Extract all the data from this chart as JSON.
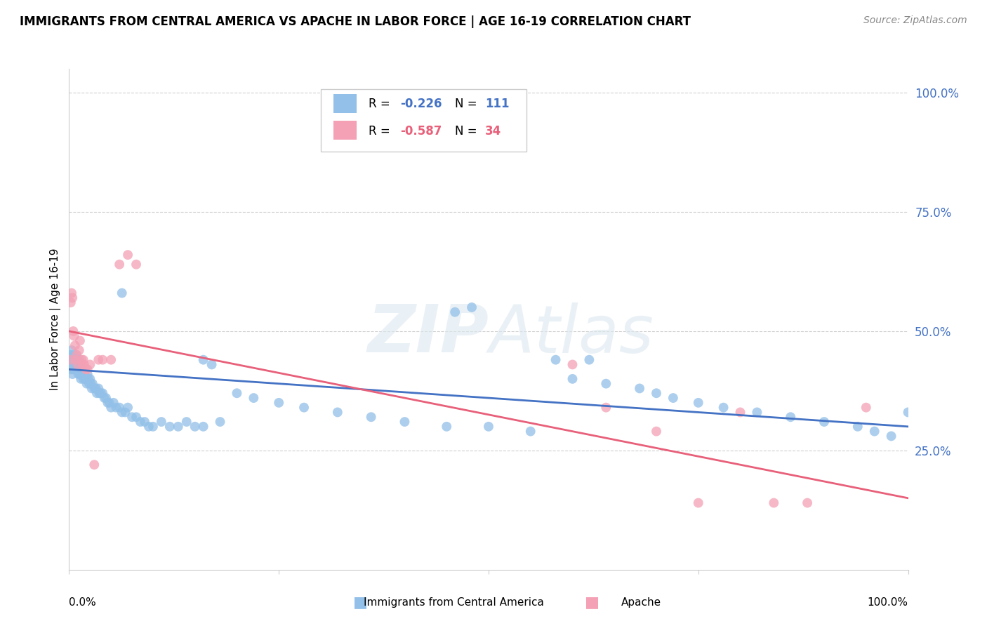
{
  "title": "IMMIGRANTS FROM CENTRAL AMERICA VS APACHE IN LABOR FORCE | AGE 16-19 CORRELATION CHART",
  "source": "Source: ZipAtlas.com",
  "ylabel": "In Labor Force | Age 16-19",
  "ytick_labels": [
    "100.0%",
    "75.0%",
    "50.0%",
    "25.0%"
  ],
  "ytick_positions": [
    1.0,
    0.75,
    0.5,
    0.25
  ],
  "legend_blue_R": "-0.226",
  "legend_blue_N": "111",
  "legend_pink_R": "-0.587",
  "legend_pink_N": "34",
  "legend_blue_label": "Immigrants from Central America",
  "legend_pink_label": "Apache",
  "blue_color": "#92C0E8",
  "pink_color": "#F4A0B5",
  "blue_line_color": "#4472C4",
  "pink_line_color": "#E8607A",
  "blue_trend_x": [
    0.0,
    1.0
  ],
  "blue_trend_y": [
    0.42,
    0.3
  ],
  "pink_trend_x": [
    0.0,
    1.0
  ],
  "pink_trend_y": [
    0.5,
    0.15
  ],
  "xlim": [
    0.0,
    1.0
  ],
  "ylim": [
    0.0,
    1.05
  ],
  "blue_scatter_x": [
    0.001,
    0.002,
    0.002,
    0.003,
    0.003,
    0.003,
    0.004,
    0.004,
    0.004,
    0.005,
    0.005,
    0.005,
    0.006,
    0.006,
    0.006,
    0.007,
    0.007,
    0.007,
    0.008,
    0.008,
    0.008,
    0.009,
    0.009,
    0.009,
    0.01,
    0.01,
    0.011,
    0.011,
    0.012,
    0.012,
    0.013,
    0.013,
    0.014,
    0.014,
    0.015,
    0.015,
    0.016,
    0.017,
    0.018,
    0.019,
    0.02,
    0.021,
    0.022,
    0.023,
    0.024,
    0.025,
    0.026,
    0.027,
    0.028,
    0.03,
    0.032,
    0.033,
    0.035,
    0.036,
    0.038,
    0.04,
    0.042,
    0.044,
    0.046,
    0.048,
    0.05,
    0.053,
    0.056,
    0.06,
    0.063,
    0.067,
    0.07,
    0.075,
    0.08,
    0.085,
    0.09,
    0.095,
    0.1,
    0.11,
    0.12,
    0.13,
    0.14,
    0.15,
    0.16,
    0.18,
    0.2,
    0.22,
    0.25,
    0.28,
    0.32,
    0.36,
    0.4,
    0.45,
    0.5,
    0.55,
    0.6,
    0.64,
    0.68,
    0.7,
    0.72,
    0.75,
    0.78,
    0.82,
    0.86,
    0.9,
    0.94,
    0.96,
    0.98,
    1.0,
    0.063,
    0.58,
    0.62,
    0.48,
    0.46,
    0.16,
    0.17
  ],
  "blue_scatter_y": [
    0.43,
    0.45,
    0.42,
    0.44,
    0.43,
    0.46,
    0.42,
    0.44,
    0.41,
    0.45,
    0.43,
    0.42,
    0.44,
    0.43,
    0.42,
    0.44,
    0.42,
    0.43,
    0.44,
    0.42,
    0.43,
    0.45,
    0.42,
    0.43,
    0.44,
    0.42,
    0.43,
    0.41,
    0.44,
    0.42,
    0.43,
    0.41,
    0.42,
    0.4,
    0.41,
    0.42,
    0.41,
    0.4,
    0.41,
    0.4,
    0.4,
    0.39,
    0.41,
    0.4,
    0.39,
    0.4,
    0.39,
    0.38,
    0.39,
    0.38,
    0.38,
    0.37,
    0.38,
    0.37,
    0.37,
    0.37,
    0.36,
    0.36,
    0.35,
    0.35,
    0.34,
    0.35,
    0.34,
    0.34,
    0.33,
    0.33,
    0.34,
    0.32,
    0.32,
    0.31,
    0.31,
    0.3,
    0.3,
    0.31,
    0.3,
    0.3,
    0.31,
    0.3,
    0.3,
    0.31,
    0.37,
    0.36,
    0.35,
    0.34,
    0.33,
    0.32,
    0.31,
    0.3,
    0.3,
    0.29,
    0.4,
    0.39,
    0.38,
    0.37,
    0.36,
    0.35,
    0.34,
    0.33,
    0.32,
    0.31,
    0.3,
    0.29,
    0.28,
    0.33,
    0.58,
    0.44,
    0.44,
    0.55,
    0.54,
    0.44,
    0.43
  ],
  "pink_scatter_x": [
    0.001,
    0.002,
    0.003,
    0.004,
    0.005,
    0.006,
    0.007,
    0.008,
    0.009,
    0.01,
    0.012,
    0.013,
    0.015,
    0.016,
    0.017,
    0.018,
    0.02,
    0.022,
    0.025,
    0.03,
    0.035,
    0.04,
    0.05,
    0.06,
    0.07,
    0.08,
    0.6,
    0.64,
    0.7,
    0.75,
    0.8,
    0.84,
    0.88,
    0.95
  ],
  "pink_scatter_y": [
    0.44,
    0.56,
    0.58,
    0.57,
    0.5,
    0.49,
    0.47,
    0.44,
    0.45,
    0.43,
    0.46,
    0.48,
    0.44,
    0.43,
    0.44,
    0.43,
    0.42,
    0.42,
    0.43,
    0.22,
    0.44,
    0.44,
    0.44,
    0.64,
    0.66,
    0.64,
    0.43,
    0.34,
    0.29,
    0.14,
    0.33,
    0.14,
    0.14,
    0.34
  ]
}
